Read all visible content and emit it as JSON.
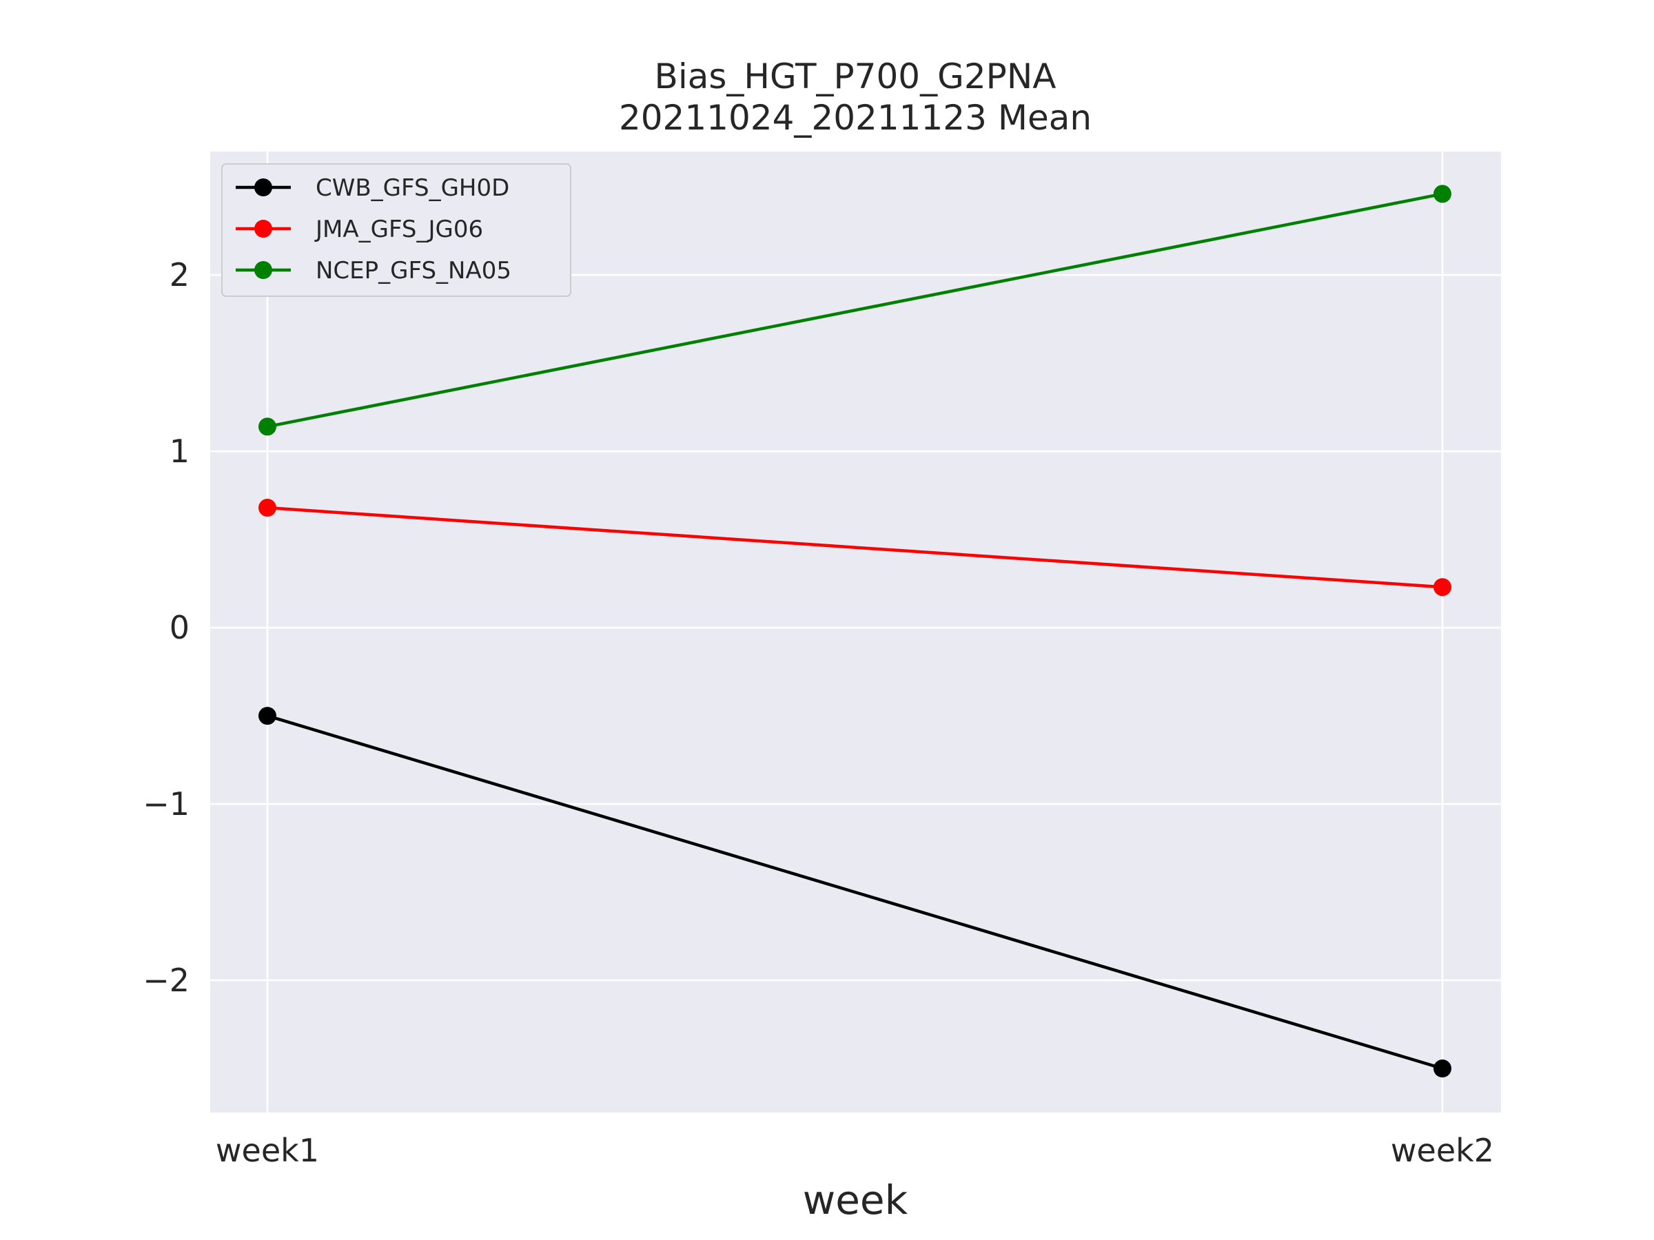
{
  "chart_data": {
    "type": "line",
    "title": [
      "Bias_HGT_P700_G2PNA",
      "20211024_20211123 Mean"
    ],
    "xlabel": "week",
    "ylabel": "",
    "categories": [
      "week1",
      "week2"
    ],
    "ylim": [
      -2.75,
      2.7
    ],
    "yticks": [
      -2,
      -1,
      0,
      1,
      2
    ],
    "ytick_labels": [
      "−2",
      "−1",
      "0",
      "1",
      "2"
    ],
    "grid": true,
    "legend_position": "top-left",
    "series": [
      {
        "name": "CWB_GFS_GH0D",
        "color": "#000000",
        "values": [
          -0.5,
          -2.5
        ]
      },
      {
        "name": "JMA_GFS_JG06",
        "color": "#ff0000",
        "values": [
          0.68,
          0.23
        ]
      },
      {
        "name": "NCEP_GFS_NA05",
        "color": "#008000",
        "values": [
          1.14,
          2.46
        ]
      }
    ],
    "colors": {
      "plot_background": "#eaeaf2",
      "grid": "#ffffff",
      "text": "#262626"
    }
  }
}
